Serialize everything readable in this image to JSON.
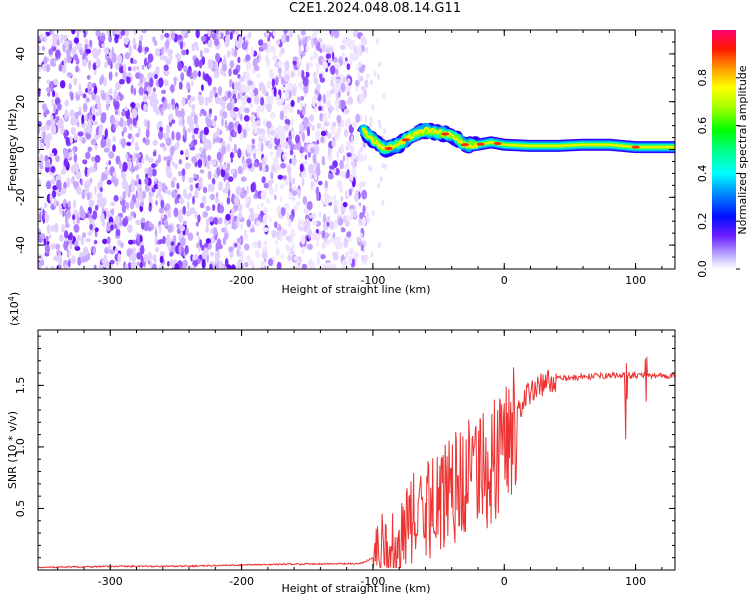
{
  "title": "C2E1.2024.048.08.14.G11",
  "chart_data": [
    {
      "type": "heatmap",
      "xlabel": "Height of straight line (km)",
      "ylabel": "Frequency (Hz)",
      "xlim": [
        -355,
        130
      ],
      "ylim": [
        -50,
        50
      ],
      "x_ticks": [
        -300,
        -200,
        -100,
        0,
        100
      ],
      "y_ticks": [
        -40,
        -20,
        0,
        20,
        40
      ],
      "colorbar": {
        "label": "Normalized spectral amplitude",
        "range": [
          0.0,
          1.0
        ],
        "ticks": [
          0.0,
          0.2,
          0.4,
          0.6,
          0.8
        ]
      },
      "ridge": {
        "x": [
          -108,
          -100,
          -90,
          -80,
          -70,
          -60,
          -50,
          -40,
          -30,
          -20,
          -10,
          0,
          20,
          40,
          60,
          80,
          100,
          130
        ],
        "freq": [
          8,
          4,
          0,
          2,
          6,
          8,
          7,
          6,
          2,
          2,
          3,
          2,
          1.5,
          1.5,
          2,
          2,
          1,
          1
        ]
      }
    },
    {
      "type": "line",
      "xlabel": "Height of straight line (km)",
      "ylabel": "SNR (10 * v/v)",
      "y_multiplier": "(x10",
      "y_multiplier_exp": "4",
      "y_multiplier_close": ")",
      "xlim": [
        -355,
        130
      ],
      "ylim": [
        0,
        1.95
      ],
      "x_ticks": [
        -300,
        -200,
        -100,
        0,
        100
      ],
      "y_ticks": [
        0.5,
        1.0,
        1.5
      ],
      "color": "#ee3333",
      "series": [
        {
          "x": [
            -355,
            -300,
            -250,
            -200,
            -150,
            -110,
            -100,
            -90,
            -80,
            -70,
            -60,
            -50,
            -40,
            -30,
            -20,
            -10,
            0,
            10,
            20,
            30,
            40,
            60,
            80,
            100,
            130
          ],
          "y": [
            0.02,
            0.03,
            0.03,
            0.04,
            0.05,
            0.05,
            0.1,
            0.2,
            0.3,
            0.45,
            0.5,
            0.6,
            0.7,
            0.75,
            0.85,
            0.95,
            1.1,
            1.3,
            1.45,
            1.52,
            1.55,
            1.57,
            1.58,
            1.58,
            1.58
          ]
        }
      ]
    }
  ]
}
